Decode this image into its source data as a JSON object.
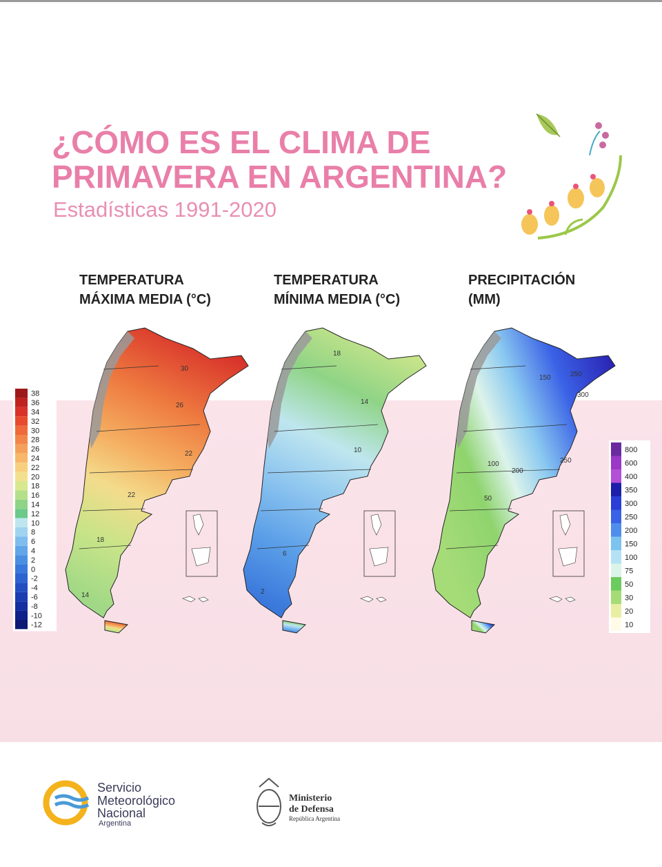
{
  "header": {
    "title_line1": "¿CÓMO ES EL CLIMA DE",
    "title_line2": "PRIMAVERA EN ARGENTINA?",
    "subtitle": "Estadísticas 1991-2020"
  },
  "maps": [
    {
      "title_line1": "TEMPERATURA",
      "title_line2": "MÁXIMA MEDIA (°C)",
      "contour_labels": [
        30,
        26,
        22,
        22,
        18,
        14
      ]
    },
    {
      "title_line1": "TEMPERATURA",
      "title_line2": "MÍNIMA MEDIA (°C)",
      "contour_labels": [
        18,
        14,
        10,
        6,
        2
      ]
    },
    {
      "title_line1": "PRECIPITACIÓN",
      "title_line2": "(MM)",
      "contour_labels": [
        150,
        250,
        300,
        250,
        200,
        100,
        50
      ]
    }
  ],
  "legends": {
    "temperature": {
      "labels": [
        38,
        36,
        34,
        32,
        30,
        28,
        26,
        24,
        22,
        20,
        18,
        16,
        14,
        12,
        10,
        8,
        6,
        4,
        2,
        0,
        -2,
        -4,
        -6,
        -8,
        -10,
        -12
      ],
      "colors": [
        "#9e1a1a",
        "#c0221f",
        "#d8322a",
        "#e84a2e",
        "#ee6a3a",
        "#f2864a",
        "#f5a05a",
        "#f7b86a",
        "#f8cf7e",
        "#f3e08e",
        "#d8e88e",
        "#b5e08a",
        "#8fd486",
        "#6cc98a",
        "#bfe6ef",
        "#9fd3f0",
        "#7fbdef",
        "#62a6ea",
        "#4b8fe3",
        "#3b78db",
        "#2d62d0",
        "#224ec2",
        "#1a3db2",
        "#142f9f",
        "#0f228a",
        "#0b1874"
      ]
    },
    "precipitation": {
      "labels": [
        800,
        600,
        400,
        350,
        300,
        250,
        200,
        150,
        100,
        75,
        50,
        30,
        20,
        10
      ],
      "colors": [
        "#6a2aa0",
        "#9b38c8",
        "#b44fd8",
        "#1c1faa",
        "#2a3fd8",
        "#3a62e6",
        "#4f8ded",
        "#7cc3f0",
        "#b4e2f4",
        "#dcf3ea",
        "#6ccb5e",
        "#a6dc78",
        "#e8efa2",
        "#fffbe6"
      ]
    }
  },
  "footer": {
    "smn_lines": [
      "Servicio",
      "Meteorológico",
      "Nacional",
      "Argentina"
    ],
    "ministry_lines": [
      "Ministerio",
      "de Defensa",
      "República Argentina"
    ]
  }
}
